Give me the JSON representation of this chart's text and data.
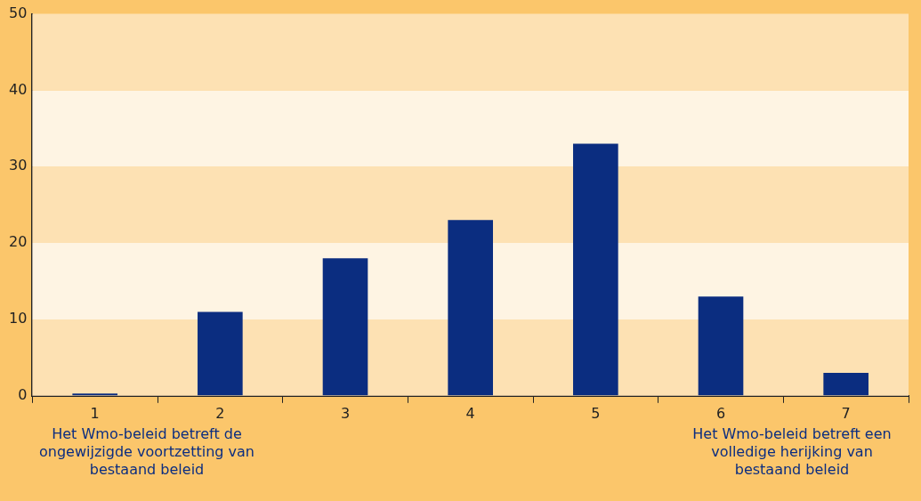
{
  "chart_data": {
    "type": "bar",
    "categories": [
      "1",
      "2",
      "3",
      "4",
      "5",
      "6",
      "7"
    ],
    "values": [
      0.3,
      11,
      18,
      23,
      33,
      13,
      3
    ],
    "color": "#0b2d80",
    "ylim": [
      0,
      50
    ],
    "yticks": [
      0,
      10,
      20,
      30,
      40,
      50
    ],
    "grid": false,
    "legend": false,
    "bands": [
      {
        "axis": "y",
        "from": 0,
        "to": 10,
        "color": "#fde1b3"
      },
      {
        "axis": "y",
        "from": 10,
        "to": 20,
        "color": "#fef4e3"
      },
      {
        "axis": "y",
        "from": 20,
        "to": 30,
        "color": "#fde1b3"
      },
      {
        "axis": "y",
        "from": 30,
        "to": 40,
        "color": "#fef4e3"
      },
      {
        "axis": "y",
        "from": 40,
        "to": 50,
        "color": "#fde1b3"
      }
    ],
    "annotations": [
      "Het Wmo-beleid betreft de ongewijzigde voortzetting van bestaand beleid",
      "Het Wmo-beleid betreft een volledige herijking van bestaand beleid"
    ]
  }
}
